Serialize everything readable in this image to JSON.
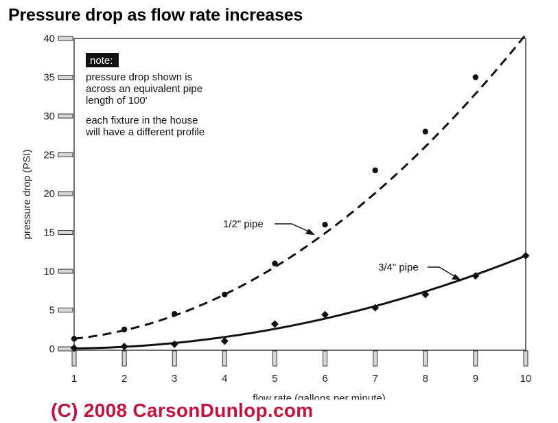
{
  "chart_data": {
    "type": "scatter",
    "title": "Pressure drop as flow rate increases",
    "xlabel": "flow rate (gallons per minute)",
    "ylabel": "pressure drop (PSI)",
    "xlim": [
      1,
      10
    ],
    "ylim": [
      0,
      40
    ],
    "x_ticks": [
      "1",
      "2",
      "3",
      "4",
      "5",
      "6",
      "7",
      "8",
      "9",
      "10"
    ],
    "y_ticks": [
      "0",
      "5",
      "10",
      "15",
      "20",
      "25",
      "30",
      "35",
      "40"
    ],
    "grid": false,
    "series": [
      {
        "name": "1/2\" pipe",
        "line_style": "dashed",
        "marker": "circle",
        "x": [
          1,
          2,
          3,
          4,
          5,
          6,
          7,
          8,
          9
        ],
        "y": [
          1.3,
          2.5,
          4.5,
          7.0,
          11.0,
          16.0,
          23.0,
          28.0,
          35.0
        ],
        "curve_y_at_x10": 40.5
      },
      {
        "name": "3/4\" pipe",
        "line_style": "solid",
        "marker": "diamond",
        "x": [
          1,
          2,
          3,
          4,
          5,
          6,
          7,
          8,
          9,
          10
        ],
        "y": [
          0.1,
          0.3,
          0.6,
          1.0,
          3.2,
          4.4,
          5.3,
          7.0,
          9.4,
          12.0
        ],
        "curve_y_at_x10": 12.0
      }
    ],
    "annotations": {
      "note_heading": "note:",
      "note_lines": [
        "pressure drop shown is",
        "across an equivalent pipe",
        "length of 100'",
        "each fixture in the house",
        "will have a different profile"
      ],
      "half_pipe_label": "1/2\" pipe",
      "three_quarter_pipe_label": "3/4\" pipe"
    }
  },
  "copyright": "(C) 2008 CarsonDunlop.com"
}
